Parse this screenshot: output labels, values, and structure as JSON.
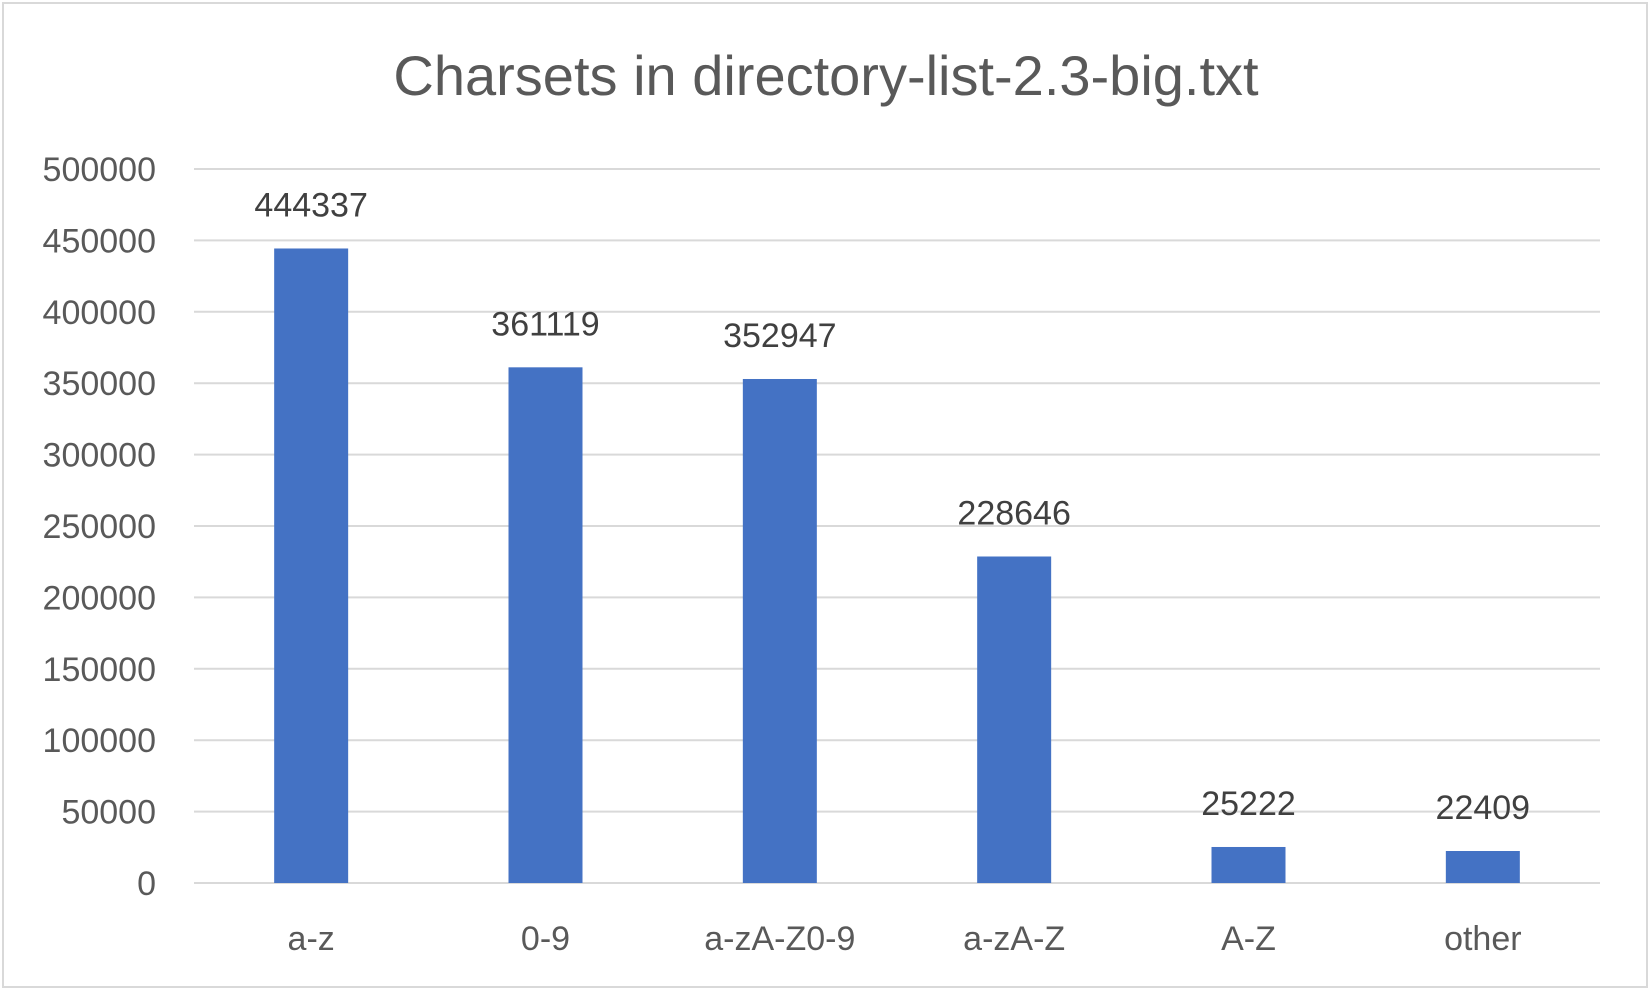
{
  "chart_data": {
    "type": "bar",
    "title": "Charsets in directory-list-2.3-big.txt",
    "xlabel": "",
    "ylabel": "",
    "categories": [
      "a-z",
      "0-9",
      "a-zA-Z0-9",
      "a-zA-Z",
      "A-Z",
      "other"
    ],
    "values": [
      444337,
      361119,
      352947,
      228646,
      25222,
      22409
    ],
    "data_labels": [
      "444337",
      "361119",
      "352947",
      "228646",
      "25222",
      "22409"
    ],
    "ylim": [
      0,
      500000
    ],
    "yticks": [
      0,
      50000,
      100000,
      150000,
      200000,
      250000,
      300000,
      350000,
      400000,
      450000,
      500000
    ],
    "ytick_labels": [
      "0",
      "50000",
      "100000",
      "150000",
      "200000",
      "250000",
      "300000",
      "350000",
      "400000",
      "450000",
      "500000"
    ],
    "grid": true,
    "legend": "none",
    "bar_color": "#4472C4"
  }
}
